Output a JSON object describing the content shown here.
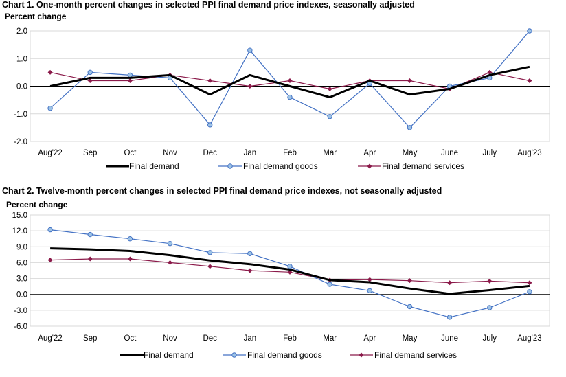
{
  "colors": {
    "demand": "#000000",
    "goods": "#4472c4",
    "goods_fill": "#9dc3e6",
    "services": "#8b1a4a",
    "grid": "#d9d9d9",
    "axis": "#000000"
  },
  "chart1": {
    "title": "Chart 1. One-month percent changes in selected PPI final demand price indexes, seasonally adjusted",
    "ylabel": "Percent change"
  },
  "chart2": {
    "title": "Chart 2. Twelve-month percent changes in selected PPI final demand price indexes, not seasonally adjusted",
    "ylabel": "Percent change"
  },
  "legend": {
    "demand": "Final demand",
    "goods": "Final demand goods",
    "services": "Final demand services"
  },
  "chart_data": [
    {
      "type": "line",
      "title": "Chart 1. One-month percent changes in selected PPI final demand price indexes, seasonally adjusted",
      "ylabel": "Percent change",
      "xlabel": "",
      "categories": [
        "Aug'22",
        "Sep",
        "Oct",
        "Nov",
        "Dec",
        "Jan",
        "Feb",
        "Mar",
        "Apr",
        "May",
        "June",
        "July",
        "Aug'23"
      ],
      "ylim": [
        -2.0,
        2.0
      ],
      "yticks": [
        2.0,
        1.0,
        0.0,
        -1.0,
        -2.0
      ],
      "ytick_labels": [
        "2.0",
        "1.0",
        "0.0",
        "-1.0",
        "-2.0"
      ],
      "grid": true,
      "legend_position": "bottom",
      "series": [
        {
          "name": "Final demand",
          "key": "demand",
          "values": [
            0.0,
            0.3,
            0.3,
            0.4,
            -0.3,
            0.4,
            0.0,
            -0.4,
            0.2,
            -0.3,
            -0.1,
            0.4,
            0.7
          ]
        },
        {
          "name": "Final demand goods",
          "key": "goods",
          "values": [
            -0.8,
            0.5,
            0.4,
            0.3,
            -1.4,
            1.3,
            -0.4,
            -1.1,
            0.1,
            -1.5,
            0.0,
            0.3,
            2.0
          ]
        },
        {
          "name": "Final demand services",
          "key": "services",
          "values": [
            0.5,
            0.2,
            0.2,
            0.4,
            0.2,
            0.0,
            0.2,
            -0.1,
            0.2,
            0.2,
            -0.1,
            0.5,
            0.2
          ]
        }
      ]
    },
    {
      "type": "line",
      "title": "Chart 2. Twelve-month percent changes in selected PPI final demand price indexes, not seasonally adjusted",
      "ylabel": "Percent change",
      "xlabel": "",
      "categories": [
        "Aug'22",
        "Sep",
        "Oct",
        "Nov",
        "Dec",
        "Jan",
        "Feb",
        "Mar",
        "Apr",
        "May",
        "June",
        "July",
        "Aug'23"
      ],
      "ylim": [
        -6.0,
        15.0
      ],
      "yticks": [
        15.0,
        12.0,
        9.0,
        6.0,
        3.0,
        0.0,
        -3.0,
        -6.0
      ],
      "ytick_labels": [
        "15.0",
        "12.0",
        "9.0",
        "6.0",
        "3.0",
        "0.0",
        "-3.0",
        "-6.0"
      ],
      "grid": true,
      "legend_position": "bottom",
      "series": [
        {
          "name": "Final demand",
          "key": "demand",
          "values": [
            8.7,
            8.5,
            8.2,
            7.4,
            6.4,
            5.7,
            4.7,
            2.7,
            2.3,
            1.1,
            0.1,
            0.8,
            1.6
          ]
        },
        {
          "name": "Final demand goods",
          "key": "goods",
          "values": [
            12.2,
            11.3,
            10.5,
            9.6,
            7.9,
            7.7,
            5.3,
            1.9,
            0.7,
            -2.3,
            -4.3,
            -2.5,
            0.5
          ]
        },
        {
          "name": "Final demand services",
          "key": "services",
          "values": [
            6.5,
            6.7,
            6.7,
            6.0,
            5.3,
            4.5,
            4.2,
            2.7,
            2.8,
            2.6,
            2.2,
            2.5,
            2.2
          ]
        }
      ]
    }
  ]
}
